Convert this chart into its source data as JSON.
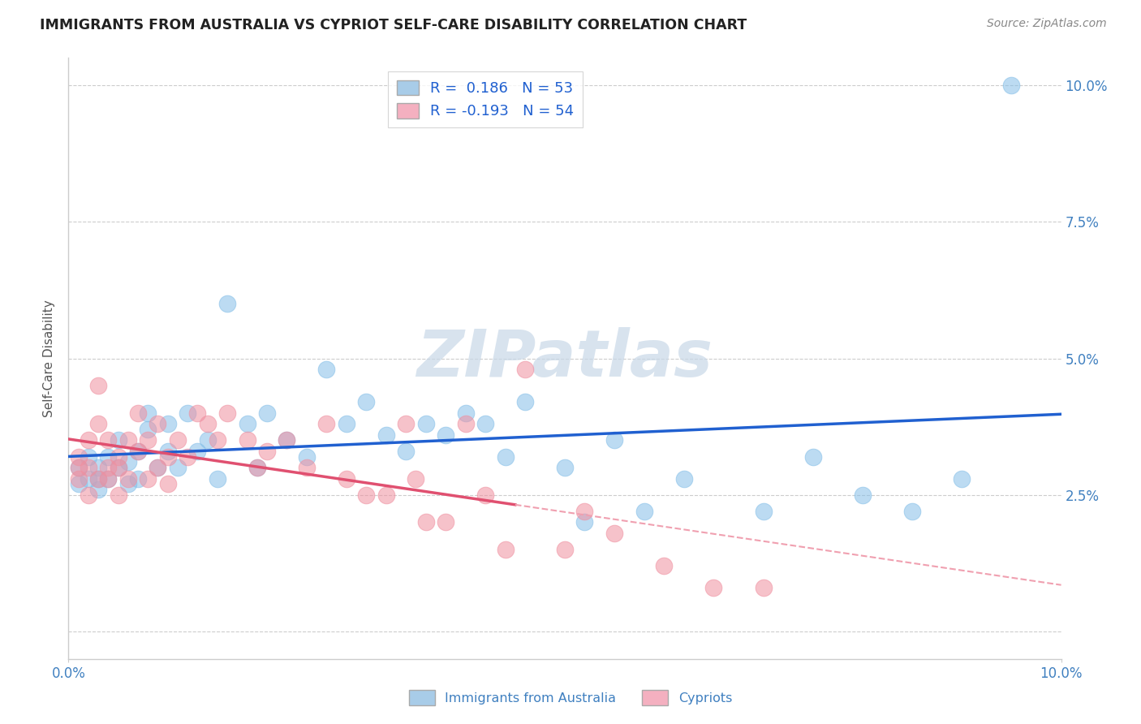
{
  "title": "IMMIGRANTS FROM AUSTRALIA VS CYPRIOT SELF-CARE DISABILITY CORRELATION CHART",
  "source": "Source: ZipAtlas.com",
  "ylabel": "Self-Care Disability",
  "xlim": [
    0.0,
    0.1
  ],
  "ylim": [
    -0.005,
    0.105
  ],
  "yticks": [
    0.0,
    0.025,
    0.05,
    0.075,
    0.1
  ],
  "yticklabels_right": [
    "",
    "2.5%",
    "5.0%",
    "7.5%",
    "10.0%"
  ],
  "xticklabels_bottom": [
    "0.0%",
    "10.0%"
  ],
  "xtick_positions_bottom": [
    0.0,
    0.1
  ],
  "series1_label": "Immigrants from Australia",
  "series2_label": "Cypriots",
  "series1_color": "#85bfe8",
  "series2_color": "#f090a0",
  "series1_edge": "#85bfe8",
  "series2_edge": "#f090a0",
  "trendline1_color": "#2060d0",
  "trendline2_color": "#e05070",
  "trendline2_dash_color": "#f0a0b0",
  "legend_label1": "R =  0.186   N = 53",
  "legend_label2": "R = -0.193   N = 54",
  "legend_patch1_color": "#a8cce8",
  "legend_patch2_color": "#f4b0c0",
  "title_color": "#222222",
  "source_color": "#888888",
  "watermark_text": "ZIPatlas",
  "watermark_color": "#c8d8e8",
  "background_color": "#ffffff",
  "grid_color": "#cccccc",
  "axis_color": "#cccccc",
  "tick_label_color": "#4080c0",
  "australia_x": [
    0.001,
    0.001,
    0.002,
    0.002,
    0.003,
    0.003,
    0.003,
    0.004,
    0.004,
    0.005,
    0.005,
    0.006,
    0.006,
    0.007,
    0.007,
    0.008,
    0.008,
    0.009,
    0.01,
    0.01,
    0.011,
    0.012,
    0.013,
    0.014,
    0.015,
    0.016,
    0.018,
    0.019,
    0.02,
    0.022,
    0.024,
    0.026,
    0.028,
    0.03,
    0.032,
    0.034,
    0.036,
    0.038,
    0.04,
    0.042,
    0.044,
    0.046,
    0.05,
    0.052,
    0.055,
    0.058,
    0.062,
    0.07,
    0.075,
    0.08,
    0.085,
    0.09,
    0.095
  ],
  "australia_y": [
    0.03,
    0.027,
    0.028,
    0.032,
    0.026,
    0.03,
    0.028,
    0.032,
    0.028,
    0.035,
    0.03,
    0.027,
    0.031,
    0.033,
    0.028,
    0.04,
    0.037,
    0.03,
    0.038,
    0.033,
    0.03,
    0.04,
    0.033,
    0.035,
    0.028,
    0.06,
    0.038,
    0.03,
    0.04,
    0.035,
    0.032,
    0.048,
    0.038,
    0.042,
    0.036,
    0.033,
    0.038,
    0.036,
    0.04,
    0.038,
    0.032,
    0.042,
    0.03,
    0.02,
    0.035,
    0.022,
    0.028,
    0.022,
    0.032,
    0.025,
    0.022,
    0.028,
    0.1
  ],
  "cyprus_x": [
    0.001,
    0.001,
    0.001,
    0.002,
    0.002,
    0.002,
    0.003,
    0.003,
    0.003,
    0.004,
    0.004,
    0.004,
    0.005,
    0.005,
    0.005,
    0.006,
    0.006,
    0.007,
    0.007,
    0.008,
    0.008,
    0.009,
    0.009,
    0.01,
    0.01,
    0.011,
    0.012,
    0.013,
    0.014,
    0.015,
    0.016,
    0.018,
    0.019,
    0.02,
    0.022,
    0.024,
    0.026,
    0.028,
    0.03,
    0.032,
    0.034,
    0.035,
    0.036,
    0.038,
    0.04,
    0.042,
    0.044,
    0.046,
    0.05,
    0.052,
    0.055,
    0.06,
    0.065,
    0.07
  ],
  "cyprus_y": [
    0.03,
    0.028,
    0.032,
    0.025,
    0.03,
    0.035,
    0.045,
    0.028,
    0.038,
    0.03,
    0.035,
    0.028,
    0.032,
    0.025,
    0.03,
    0.035,
    0.028,
    0.04,
    0.033,
    0.035,
    0.028,
    0.038,
    0.03,
    0.032,
    0.027,
    0.035,
    0.032,
    0.04,
    0.038,
    0.035,
    0.04,
    0.035,
    0.03,
    0.033,
    0.035,
    0.03,
    0.038,
    0.028,
    0.025,
    0.025,
    0.038,
    0.028,
    0.02,
    0.02,
    0.038,
    0.025,
    0.015,
    0.048,
    0.015,
    0.022,
    0.018,
    0.012,
    0.008,
    0.008
  ],
  "trendline_x_start": 0.0,
  "trendline_x_end": 0.1,
  "trendline2_solid_end": 0.045
}
